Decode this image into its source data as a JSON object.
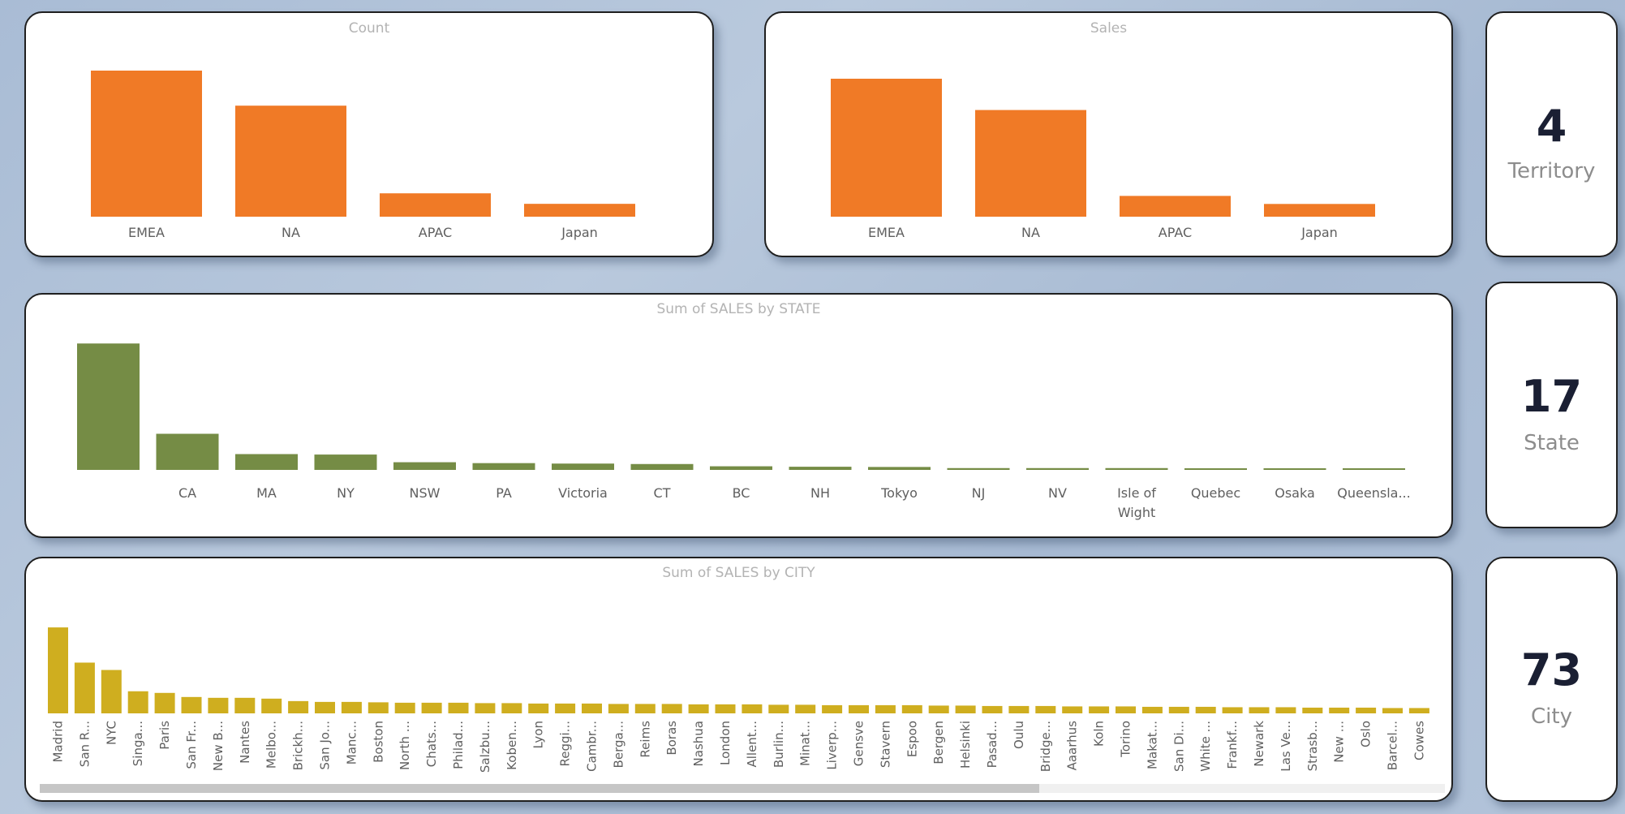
{
  "colors": {
    "orange": "#f07a26",
    "green": "#758c45",
    "gold": "#cfae1f",
    "title": "#b3b3b3",
    "axis_label": "#5f5f5f"
  },
  "chart_data": [
    {
      "id": "count",
      "type": "bar",
      "title": "Count",
      "categories": [
        "EMEA",
        "NA",
        "APAC",
        "Japan"
      ],
      "values": [
        50,
        38,
        8,
        4.4
      ],
      "ylim": [
        0,
        55
      ],
      "grid": false,
      "legend": "none"
    },
    {
      "id": "sales",
      "type": "bar",
      "title": "Sales",
      "categories": [
        "EMEA",
        "NA",
        "APAC",
        "Japan"
      ],
      "values": [
        4.98,
        3.85,
        0.75,
        0.46
      ],
      "ylim": [
        0,
        5.8
      ],
      "grid": false,
      "legend": "none"
    },
    {
      "id": "state",
      "type": "bar",
      "title": "Sum of SALES by STATE",
      "categories": [
        "",
        "CA",
        "MA",
        "NY",
        "NSW",
        "PA",
        "Victoria",
        "CT",
        "BC",
        "NH",
        "Tokyo",
        "NJ",
        "NV",
        "Isle of Wight",
        "Quebec",
        "Osaka",
        "Queensla..."
      ],
      "values": [
        5.6,
        1.6,
        0.7,
        0.68,
        0.34,
        0.3,
        0.28,
        0.26,
        0.16,
        0.14,
        0.13,
        0.08,
        0.08,
        0.08,
        0.07,
        0.06,
        0.05
      ],
      "ylim": [
        0,
        6.4
      ],
      "grid": false,
      "legend": "none"
    },
    {
      "id": "city",
      "type": "bar",
      "title": "Sum of SALES by CITY",
      "categories": [
        "Madrid",
        "San R...",
        "NYC",
        "Singa...",
        "Paris",
        "San Fr...",
        "New B...",
        "Nantes",
        "Melbo...",
        "Brickh...",
        "San Jo...",
        "Manc...",
        "Boston",
        "North ...",
        "Chats...",
        "Philad...",
        "Salzbu...",
        "Koben...",
        "Lyon",
        "Reggi...",
        "Cambr...",
        "Berga...",
        "Reims",
        "Boras",
        "Nashua",
        "London",
        "Allent...",
        "Burlin...",
        "Minat...",
        "Liverp...",
        "Gensve",
        "Stavern",
        "Espoo",
        "Bergen",
        "Helsinki",
        "Pasad...",
        "Oulu",
        "Bridge...",
        "Aaarhus",
        "Koln",
        "Torino",
        "Makat...",
        "San Di...",
        "White ...",
        "Frankf...",
        "Newark",
        "Las Ve...",
        "Strasb...",
        "New ...",
        "Oslo",
        "Barcel...",
        "Cowes"
      ],
      "values": [
        1.05,
        0.62,
        0.53,
        0.27,
        0.25,
        0.2,
        0.19,
        0.19,
        0.18,
        0.15,
        0.14,
        0.14,
        0.135,
        0.13,
        0.13,
        0.13,
        0.125,
        0.125,
        0.12,
        0.12,
        0.12,
        0.115,
        0.115,
        0.115,
        0.11,
        0.11,
        0.11,
        0.105,
        0.105,
        0.1,
        0.1,
        0.1,
        0.1,
        0.095,
        0.095,
        0.09,
        0.09,
        0.09,
        0.085,
        0.085,
        0.085,
        0.08,
        0.08,
        0.08,
        0.075,
        0.075,
        0.075,
        0.07,
        0.07,
        0.07,
        0.065,
        0.065
      ],
      "ylim": [
        0,
        1.15
      ],
      "grid": false,
      "legend": "none"
    }
  ],
  "kpis": [
    {
      "value": "4",
      "label": "Territory"
    },
    {
      "value": "17",
      "label": "State"
    },
    {
      "value": "73",
      "label": "City"
    }
  ]
}
